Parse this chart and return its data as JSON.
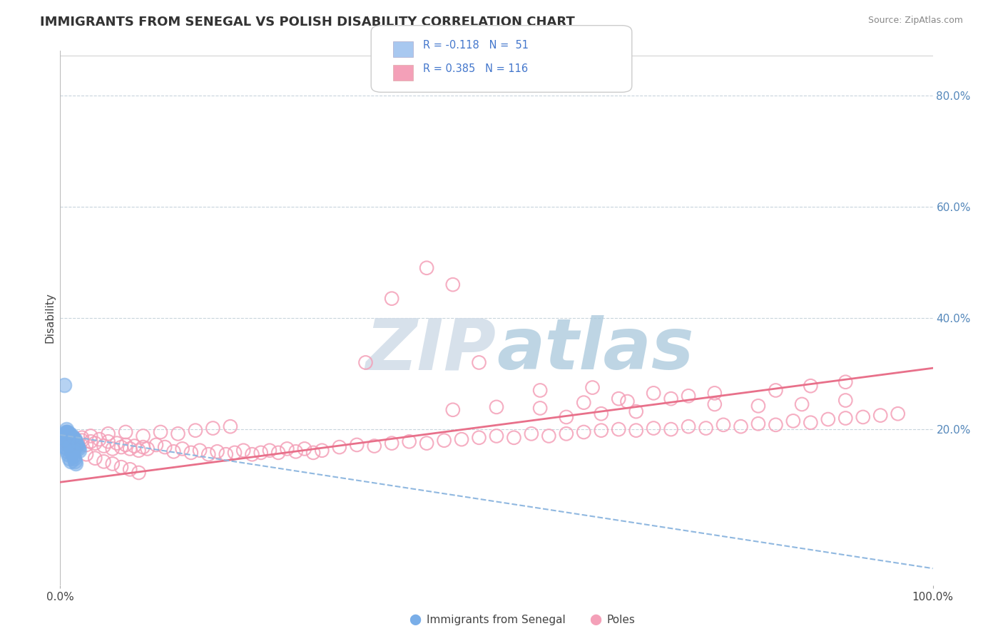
{
  "title": "IMMIGRANTS FROM SENEGAL VS POLISH DISABILITY CORRELATION CHART",
  "source": "Source: ZipAtlas.com",
  "ylabel": "Disability",
  "y_tick_vals": [
    0.8,
    0.6,
    0.4,
    0.2
  ],
  "x_range": [
    0.0,
    1.0
  ],
  "y_range": [
    -0.08,
    0.88
  ],
  "color_blue": "#a8c8f0",
  "color_pink": "#f4a0b8",
  "scatter_blue_color": "#7aaee8",
  "scatter_pink_color": "#f4a0b8",
  "trendline_blue_color": "#90b8e0",
  "trendline_pink_color": "#e8708a",
  "watermark_color": "#dce8f0",
  "background_color": "#ffffff",
  "grid_color": "#c8d4dc",
  "blue_scatter_x": [
    0.005,
    0.006,
    0.007,
    0.008,
    0.008,
    0.009,
    0.009,
    0.01,
    0.01,
    0.01,
    0.011,
    0.011,
    0.012,
    0.012,
    0.013,
    0.013,
    0.014,
    0.014,
    0.015,
    0.015,
    0.016,
    0.016,
    0.017,
    0.017,
    0.018,
    0.018,
    0.019,
    0.02,
    0.021,
    0.022,
    0.006,
    0.007,
    0.008,
    0.009,
    0.01,
    0.011,
    0.012,
    0.013,
    0.014,
    0.015,
    0.016,
    0.017,
    0.018,
    0.005,
    0.006,
    0.007,
    0.008,
    0.009,
    0.01,
    0.012,
    0.005
  ],
  "blue_scatter_y": [
    0.185,
    0.192,
    0.178,
    0.188,
    0.195,
    0.182,
    0.19,
    0.185,
    0.178,
    0.192,
    0.18,
    0.188,
    0.175,
    0.185,
    0.18,
    0.19,
    0.176,
    0.183,
    0.178,
    0.185,
    0.172,
    0.18,
    0.175,
    0.182,
    0.17,
    0.178,
    0.172,
    0.168,
    0.165,
    0.162,
    0.195,
    0.2,
    0.195,
    0.188,
    0.182,
    0.175,
    0.168,
    0.162,
    0.158,
    0.152,
    0.148,
    0.142,
    0.138,
    0.17,
    0.175,
    0.165,
    0.16,
    0.155,
    0.148,
    0.142,
    0.28
  ],
  "pink_scatter_x": [
    0.005,
    0.01,
    0.015,
    0.02,
    0.025,
    0.03,
    0.035,
    0.04,
    0.045,
    0.05,
    0.055,
    0.06,
    0.065,
    0.07,
    0.075,
    0.08,
    0.085,
    0.09,
    0.095,
    0.1,
    0.11,
    0.12,
    0.13,
    0.14,
    0.15,
    0.16,
    0.17,
    0.18,
    0.19,
    0.2,
    0.21,
    0.22,
    0.23,
    0.24,
    0.25,
    0.26,
    0.27,
    0.28,
    0.29,
    0.3,
    0.32,
    0.34,
    0.36,
    0.38,
    0.4,
    0.42,
    0.44,
    0.46,
    0.48,
    0.5,
    0.52,
    0.54,
    0.56,
    0.58,
    0.6,
    0.62,
    0.64,
    0.66,
    0.68,
    0.7,
    0.72,
    0.74,
    0.76,
    0.78,
    0.8,
    0.82,
    0.84,
    0.86,
    0.88,
    0.9,
    0.92,
    0.94,
    0.96,
    0.025,
    0.035,
    0.055,
    0.075,
    0.095,
    0.115,
    0.135,
    0.155,
    0.175,
    0.195,
    0.35,
    0.42,
    0.38,
    0.45,
    0.48,
    0.55,
    0.61,
    0.64,
    0.68,
    0.72,
    0.75,
    0.82,
    0.86,
    0.9,
    0.45,
    0.5,
    0.55,
    0.6,
    0.65,
    0.7,
    0.75,
    0.8,
    0.85,
    0.9,
    0.58,
    0.62,
    0.66,
    0.03,
    0.04,
    0.05,
    0.06,
    0.07,
    0.08,
    0.09
  ],
  "pink_scatter_y": [
    0.18,
    0.17,
    0.185,
    0.175,
    0.18,
    0.172,
    0.178,
    0.175,
    0.182,
    0.17,
    0.178,
    0.165,
    0.175,
    0.168,
    0.172,
    0.165,
    0.17,
    0.162,
    0.168,
    0.165,
    0.172,
    0.168,
    0.16,
    0.165,
    0.158,
    0.162,
    0.155,
    0.16,
    0.155,
    0.158,
    0.162,
    0.155,
    0.158,
    0.162,
    0.158,
    0.165,
    0.16,
    0.165,
    0.158,
    0.162,
    0.168,
    0.172,
    0.17,
    0.175,
    0.178,
    0.175,
    0.18,
    0.182,
    0.185,
    0.188,
    0.185,
    0.192,
    0.188,
    0.192,
    0.195,
    0.198,
    0.2,
    0.198,
    0.202,
    0.2,
    0.205,
    0.202,
    0.208,
    0.205,
    0.21,
    0.208,
    0.215,
    0.212,
    0.218,
    0.22,
    0.222,
    0.225,
    0.228,
    0.185,
    0.188,
    0.192,
    0.195,
    0.188,
    0.195,
    0.192,
    0.198,
    0.202,
    0.205,
    0.32,
    0.49,
    0.435,
    0.46,
    0.32,
    0.27,
    0.275,
    0.255,
    0.265,
    0.26,
    0.265,
    0.27,
    0.278,
    0.285,
    0.235,
    0.24,
    0.238,
    0.248,
    0.25,
    0.255,
    0.245,
    0.242,
    0.245,
    0.252,
    0.222,
    0.228,
    0.232,
    0.155,
    0.148,
    0.142,
    0.138,
    0.132,
    0.128,
    0.122
  ],
  "pink_trendline_x0": 0.0,
  "pink_trendline_y0": 0.105,
  "pink_trendline_x1": 1.0,
  "pink_trendline_y1": 0.31,
  "blue_trendline_x0": 0.0,
  "blue_trendline_y0": 0.19,
  "blue_trendline_x1": 1.0,
  "blue_trendline_y1": -0.05
}
